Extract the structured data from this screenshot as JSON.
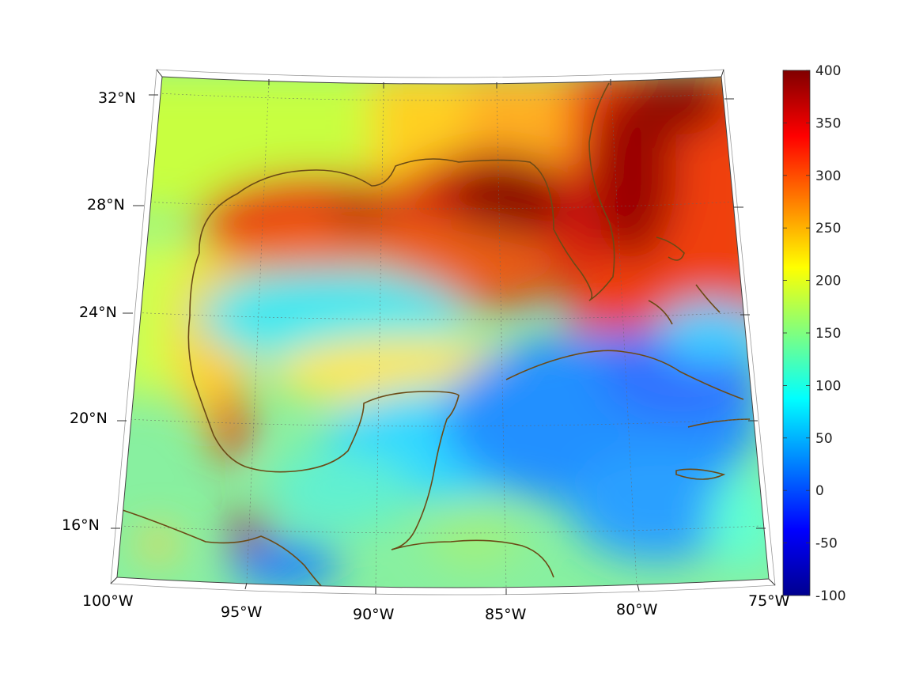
{
  "map": {
    "projection": "conic",
    "region": "Gulf of Mexico and Caribbean",
    "lon_range": [
      -100,
      -75
    ],
    "lat_range": [
      14,
      33
    ],
    "field_colormap": "jet",
    "coastline_color": "#6b4a16",
    "lon_ticks": [
      {
        "value": -100,
        "label": "100°W"
      },
      {
        "value": -95,
        "label": "95°W"
      },
      {
        "value": -90,
        "label": "90°W"
      },
      {
        "value": -85,
        "label": "85°W"
      },
      {
        "value": -80,
        "label": "80°W"
      },
      {
        "value": -75,
        "label": "75°W"
      }
    ],
    "lat_ticks": [
      {
        "value": 32,
        "label": "32°N"
      },
      {
        "value": 28,
        "label": "28°N"
      },
      {
        "value": 24,
        "label": "24°N"
      },
      {
        "value": 20,
        "label": "20°N"
      },
      {
        "value": 16,
        "label": "16°N"
      }
    ],
    "grid": true
  },
  "colorbar": {
    "min": -100,
    "max": 400,
    "ticks": [
      {
        "value": 400,
        "label": "400"
      },
      {
        "value": 350,
        "label": "350"
      },
      {
        "value": 300,
        "label": "300"
      },
      {
        "value": 250,
        "label": "250"
      },
      {
        "value": 200,
        "label": "200"
      },
      {
        "value": 150,
        "label": "150"
      },
      {
        "value": 100,
        "label": "100"
      },
      {
        "value": 50,
        "label": "50"
      },
      {
        "value": 0,
        "label": "0"
      },
      {
        "value": -50,
        "label": "-50"
      },
      {
        "value": -100,
        "label": "-100"
      }
    ]
  }
}
